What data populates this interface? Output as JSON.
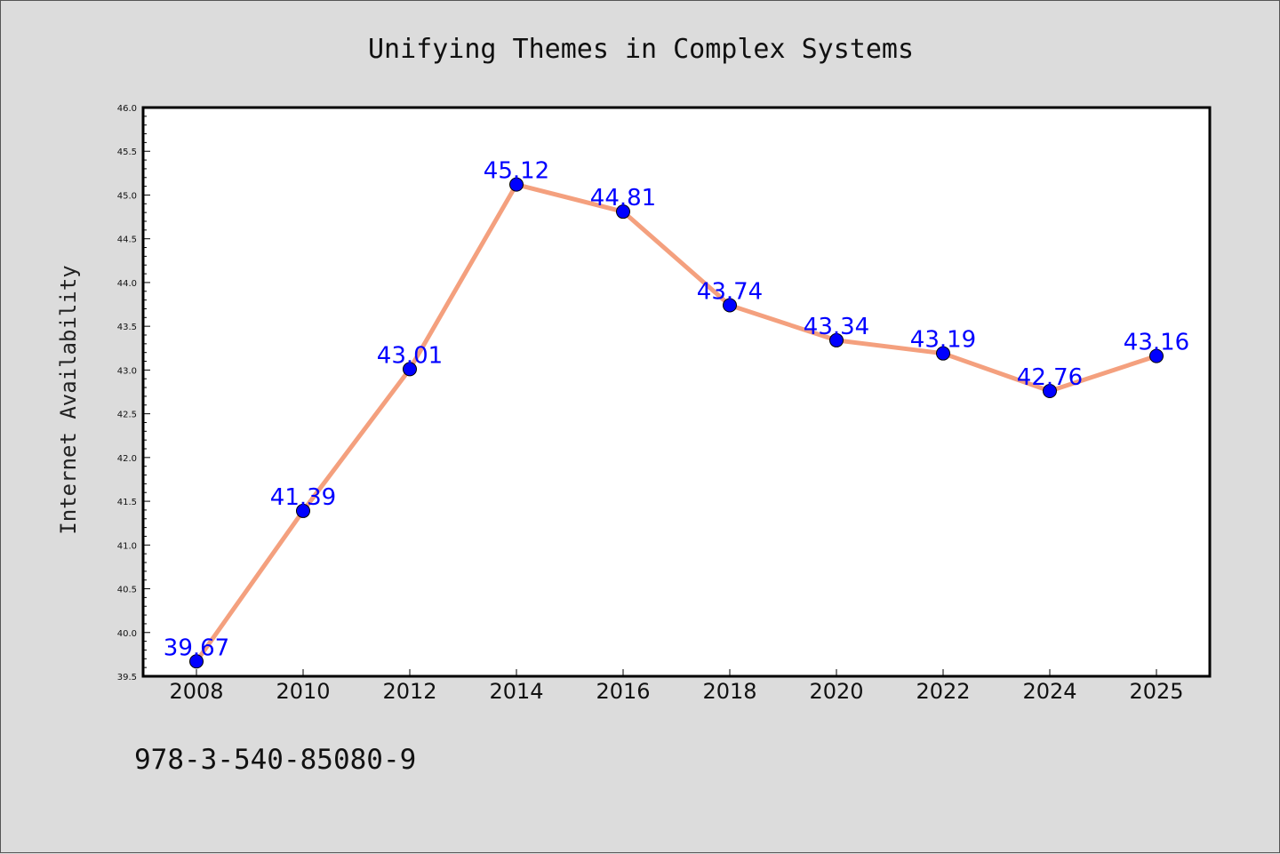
{
  "chart_data": {
    "type": "line",
    "title": "Unifying Themes in Complex Systems",
    "xlabel": "",
    "ylabel": "Internet Availability",
    "categories": [
      "2008",
      "2010",
      "2012",
      "2014",
      "2016",
      "2018",
      "2020",
      "2022",
      "2024",
      "2025"
    ],
    "values": [
      39.67,
      41.39,
      43.01,
      45.12,
      44.81,
      43.74,
      43.34,
      43.19,
      42.76,
      43.16
    ],
    "data_labels": [
      "39.67",
      "41.39",
      "43.01",
      "45.12",
      "44.81",
      "43.74",
      "43.34",
      "43.19",
      "42.76",
      "43.16"
    ],
    "ylim": [
      39.5,
      46.0
    ],
    "yticks": [
      "39.5",
      "40.0",
      "40.5",
      "41.0",
      "41.5",
      "42.0",
      "42.5",
      "43.0",
      "43.5",
      "44.0",
      "44.5",
      "45.0",
      "45.5",
      "46.0"
    ],
    "grid": false,
    "line_color": "#f4a07e",
    "marker_color": "#0000ff",
    "label_color": "#0000ff"
  },
  "footer_text": "978-3-540-85080-9"
}
